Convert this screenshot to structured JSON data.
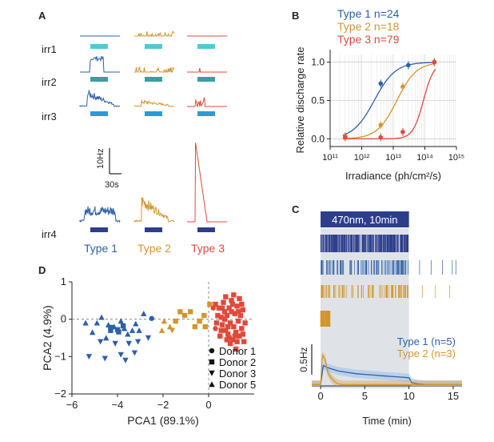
{
  "colors": {
    "type1": "#2e5fa8",
    "type2": "#d4952f",
    "type3": "#e0493b",
    "cyan": "#56c7d1",
    "teal": "#3d9da0",
    "blue_bar": "#2b9ad9",
    "navy_bar": "#2c3e8c",
    "shade": "#dfe3e8",
    "band": "#a9c8ea"
  },
  "panels": {
    "A": "A",
    "B": "B",
    "C": "C",
    "D": "D"
  },
  "panel_a": {
    "rows": [
      "irr1",
      "irr2",
      "irr3",
      "irr4"
    ],
    "scale_y": "10Hz",
    "scale_x": "30s",
    "types": [
      "Type 1",
      "Type 2",
      "Type 3"
    ]
  },
  "panel_c": {
    "stimulus": "470nm, 10min",
    "scale": "0.5Hz",
    "legend": [
      "Type 1 (n=5)",
      "Type 2 (n=3)"
    ]
  },
  "chart_data": [
    {
      "type": "scatter",
      "panel": "B",
      "xlabel": "Irradiance (ph/cm²/s)",
      "ylabel": "Relative discharge rate",
      "x_scale": "log",
      "xlim": [
        100000000000.0,
        1000000000000000.0
      ],
      "ylim": [
        -0.1,
        1.1
      ],
      "x_ticks": [
        "10¹¹",
        "10¹²",
        "10¹³",
        "10¹⁴",
        "10¹⁵"
      ],
      "y_ticks": [
        "0.0",
        "0.5",
        "1.0"
      ],
      "grid": true,
      "legend_position": "top-left",
      "series": [
        {
          "name": "Type 1 n=24",
          "color": "#2e5fa8",
          "x": [
            300000000000.0,
            4000000000000.0,
            30000000000000.0,
            200000000000000.0
          ],
          "y": [
            0.03,
            0.72,
            0.96,
            1.0
          ]
        },
        {
          "name": "Type 2 n=18",
          "color": "#d4952f",
          "x": [
            300000000000.0,
            4000000000000.0,
            20000000000000.0,
            200000000000000.0
          ],
          "y": [
            0.03,
            0.18,
            0.68,
            1.0
          ]
        },
        {
          "name": "Type 3 n=79",
          "color": "#e0493b",
          "x": [
            300000000000.0,
            4000000000000.0,
            20000000000000.0,
            200000000000000.0
          ],
          "y": [
            0.02,
            0.02,
            0.09,
            1.0
          ]
        }
      ]
    },
    {
      "type": "line",
      "panel": "C",
      "xlabel": "Time (min)",
      "xlim": [
        -1,
        16
      ],
      "x_ticks": [
        0,
        5,
        10,
        15
      ],
      "stimulus_interval": [
        0,
        10
      ],
      "series": [
        {
          "name": "Type 1 (n=5)",
          "color": "#2e5fa8",
          "x": [
            -1,
            0,
            0.3,
            0.6,
            1,
            2,
            3,
            4,
            5,
            6,
            7,
            8,
            9,
            10,
            10.3,
            11,
            12,
            16
          ],
          "y": [
            0.02,
            0.02,
            0.3,
            0.28,
            0.26,
            0.22,
            0.2,
            0.18,
            0.17,
            0.16,
            0.15,
            0.14,
            0.13,
            0.12,
            0.05,
            0.03,
            0.02,
            0.02
          ]
        },
        {
          "name": "Type 2 (n=3)",
          "color": "#d4952f",
          "x": [
            -1,
            0,
            0.2,
            0.5,
            0.8,
            1.2,
            1.6,
            2,
            2.5,
            3,
            4,
            5,
            6,
            7,
            8,
            9,
            10,
            11,
            16
          ],
          "y": [
            0.02,
            0.02,
            0.45,
            0.4,
            0.2,
            0.12,
            0.06,
            0.03,
            0.02,
            0.02,
            0.02,
            0.02,
            0.02,
            0.02,
            0.02,
            0.02,
            0.02,
            0.02,
            0.02
          ]
        }
      ]
    },
    {
      "type": "scatter",
      "panel": "D",
      "xlabel": "PCA1 (89.1%)",
      "ylabel": "PCA2 (4.9%)",
      "xlim": [
        -6,
        2
      ],
      "ylim": [
        -2,
        1
      ],
      "x_ticks": [
        -6,
        -4,
        -2,
        0
      ],
      "y_ticks": [
        -2,
        -1,
        0,
        1
      ],
      "legend": [
        "Donor 1",
        "Donor 2",
        "Donor 3",
        "Donor 5"
      ],
      "legend_position": "bottom-right",
      "series": [
        {
          "name": "Type 1",
          "color": "#2e5fa8",
          "points": [
            [
              -5.4,
              -0.1,
              "tri"
            ],
            [
              -5.1,
              -0.35,
              "tri"
            ],
            [
              -4.9,
              -0.1,
              "tri"
            ],
            [
              -4.7,
              0.05,
              "tri"
            ],
            [
              -4.5,
              -0.5,
              "tri"
            ],
            [
              -4.4,
              -0.15,
              "tri"
            ],
            [
              -4.3,
              -0.3,
              "sq"
            ],
            [
              -4.15,
              -0.2,
              "tri"
            ],
            [
              -4.0,
              -0.28,
              "sq"
            ],
            [
              -3.85,
              -0.05,
              "tri"
            ],
            [
              -3.7,
              -0.25,
              "tri"
            ],
            [
              -3.55,
              -0.4,
              "tri"
            ],
            [
              -3.35,
              -0.3,
              "tri"
            ],
            [
              -3.2,
              -0.12,
              "tri"
            ],
            [
              -3.05,
              -0.3,
              "tri"
            ],
            [
              -2.85,
              0.15,
              "tri"
            ],
            [
              -2.65,
              -0.5,
              "dtri"
            ],
            [
              -2.5,
              0.02,
              "circ"
            ],
            [
              -4.75,
              -0.6,
              "dtri"
            ],
            [
              -4.1,
              -0.65,
              "dtri"
            ],
            [
              -3.5,
              -0.65,
              "dtri"
            ],
            [
              -3.1,
              -0.6,
              "dtri"
            ],
            [
              -5.25,
              -1.0,
              "dtri"
            ],
            [
              -4.55,
              -1.05,
              "dtri"
            ],
            [
              -3.85,
              -0.95,
              "dtri"
            ],
            [
              -3.65,
              -1.1,
              "dtri"
            ],
            [
              -3.25,
              -0.9,
              "dtri"
            ],
            [
              -4.3,
              -0.22,
              "sq"
            ],
            [
              -3.95,
              -0.34,
              "sq"
            ],
            [
              -3.75,
              -0.18,
              "sq"
            ]
          ]
        },
        {
          "name": "Type 2",
          "color": "#d4952f",
          "points": [
            [
              -2.05,
              -0.3,
              "tri"
            ],
            [
              -1.95,
              -0.05,
              "tri"
            ],
            [
              -1.7,
              -0.2,
              "tri"
            ],
            [
              -1.45,
              -0.05,
              "sq"
            ],
            [
              -1.25,
              0.2,
              "sq"
            ],
            [
              -1.05,
              0.1,
              "sq"
            ],
            [
              -0.8,
              0.2,
              "sq"
            ],
            [
              -0.6,
              -0.2,
              "sq"
            ],
            [
              -0.4,
              -0.05,
              "sq"
            ],
            [
              -0.2,
              0.1,
              "sq"
            ],
            [
              -0.15,
              -0.2,
              "sq"
            ],
            [
              0.05,
              0.4,
              "sq"
            ],
            [
              -1.6,
              -0.3,
              "dtri"
            ]
          ]
        },
        {
          "name": "Type 3",
          "color": "#e0493b",
          "points": [
            [
              0.3,
              0.4,
              "sq"
            ],
            [
              0.45,
              0.3,
              "sq"
            ],
            [
              0.55,
              0.05,
              "sq"
            ],
            [
              0.6,
              -0.15,
              "sq"
            ],
            [
              0.7,
              0.2,
              "sq"
            ],
            [
              0.75,
              -0.3,
              "sq"
            ],
            [
              0.8,
              0.1,
              "sq"
            ],
            [
              0.85,
              -0.4,
              "sq"
            ],
            [
              0.9,
              0.3,
              "sq"
            ],
            [
              0.95,
              -0.1,
              "sq"
            ],
            [
              1.0,
              0.5,
              "sq"
            ],
            [
              1.05,
              -0.55,
              "sq"
            ],
            [
              1.1,
              -0.2,
              "sq"
            ],
            [
              1.15,
              0.15,
              "sq"
            ],
            [
              1.2,
              -0.35,
              "sq"
            ],
            [
              1.25,
              0.35,
              "sq"
            ],
            [
              1.3,
              -0.05,
              "sq"
            ],
            [
              1.35,
              -0.45,
              "sq"
            ],
            [
              1.4,
              0.1,
              "sq"
            ],
            [
              1.45,
              -0.25,
              "sq"
            ],
            [
              1.5,
              0.25,
              "sq"
            ],
            [
              1.55,
              -0.6,
              "sq"
            ],
            [
              1.6,
              -0.1,
              "sq"
            ],
            [
              0.5,
              -0.45,
              "sq"
            ],
            [
              0.65,
              0.45,
              "sq"
            ],
            [
              0.75,
              0.6,
              "sq"
            ],
            [
              0.95,
              -0.65,
              "sq"
            ],
            [
              1.2,
              -0.8,
              "sq"
            ],
            [
              1.35,
              0.55,
              "sq"
            ],
            [
              1.1,
              0.65,
              "sq"
            ],
            [
              0.4,
              0.1,
              "sq"
            ],
            [
              0.55,
              -0.3,
              "sq"
            ],
            [
              0.85,
              -0.2,
              "sq"
            ],
            [
              1.0,
              0.2,
              "sq"
            ],
            [
              1.25,
              -0.6,
              "sq"
            ],
            [
              0.7,
              0.0,
              "sq"
            ],
            [
              0.9,
              -0.5,
              "sq"
            ],
            [
              1.05,
              0.4,
              "sq"
            ],
            [
              1.45,
              0.4,
              "sq"
            ],
            [
              1.5,
              -0.4,
              "sq"
            ],
            [
              0.6,
              0.3,
              "sq"
            ],
            [
              1.15,
              -0.45,
              "sq"
            ],
            [
              0.35,
              -0.1,
              "sq"
            ],
            [
              0.8,
              -0.55,
              "sq"
            ],
            [
              1.3,
              0.2,
              "sq"
            ],
            [
              0.2,
              0.3,
              "circ"
            ],
            [
              0.3,
              -0.25,
              "circ"
            ]
          ]
        }
      ]
    }
  ]
}
